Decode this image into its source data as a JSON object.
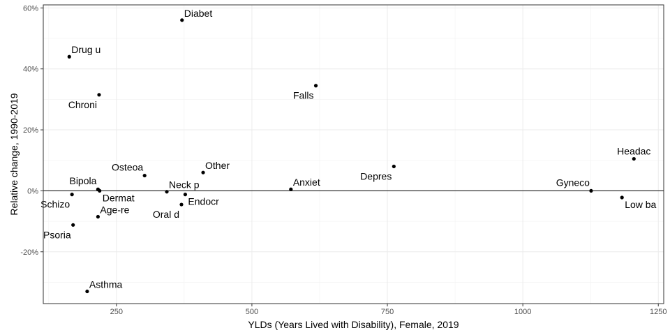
{
  "chart_data": {
    "type": "scatter",
    "title": "",
    "xlabel": "YLDs (Years Lived with Disability), Female, 2019",
    "ylabel": "Relative change, 1990-2019",
    "xlim": [
      115,
      1260
    ],
    "ylim": [
      -0.37,
      0.61
    ],
    "x_ticks": [
      250,
      500,
      750,
      1000,
      1250
    ],
    "y_ticks": [
      -0.2,
      0,
      0.2,
      0.4,
      0.6
    ],
    "x_tick_labels": [
      "250",
      "500",
      "750",
      "1000",
      "1250"
    ],
    "y_tick_labels": [
      "-20%",
      "0%",
      "20%",
      "40%",
      "60%"
    ],
    "reference_line_y": 0,
    "grid": true,
    "points": [
      {
        "label": "Diabet",
        "x": 371,
        "y": 0.56,
        "anchor": "right-above"
      },
      {
        "label": "Drug u",
        "x": 163,
        "y": 0.44,
        "anchor": "right-above"
      },
      {
        "label": "Chroni",
        "x": 218,
        "y": 0.315,
        "anchor": "left-below"
      },
      {
        "label": "Falls",
        "x": 618,
        "y": 0.345,
        "anchor": "left-below"
      },
      {
        "label": "Headac",
        "x": 1205,
        "y": 0.105,
        "anchor": "center-above"
      },
      {
        "label": "Depres",
        "x": 762,
        "y": 0.08,
        "anchor": "left-below"
      },
      {
        "label": "Other",
        "x": 410,
        "y": 0.06,
        "anchor": "right-above"
      },
      {
        "label": "Osteoa",
        "x": 302,
        "y": 0.05,
        "anchor": "left-above"
      },
      {
        "label": "Anxiet",
        "x": 572,
        "y": 0.005,
        "anchor": "right-above"
      },
      {
        "label": "Bipola",
        "x": 216,
        "y": 0.005,
        "anchor": "left-above"
      },
      {
        "label": "Dermat",
        "x": 219,
        "y": 0.0,
        "anchor": "right-below"
      },
      {
        "label": "Gyneco",
        "x": 1126,
        "y": 0.0,
        "anchor": "left-above"
      },
      {
        "label": "Neck p",
        "x": 343,
        "y": -0.003,
        "anchor": "right-above"
      },
      {
        "label": "Schizo",
        "x": 168,
        "y": -0.012,
        "anchor": "left-below"
      },
      {
        "label": "Endocr",
        "x": 377,
        "y": -0.012,
        "anchor": "right-below"
      },
      {
        "label": "Low ba",
        "x": 1183,
        "y": -0.022,
        "anchor": "right-below"
      },
      {
        "label": "Oral d",
        "x": 370,
        "y": -0.045,
        "anchor": "left-below"
      },
      {
        "label": "Age-re",
        "x": 216,
        "y": -0.085,
        "anchor": "right-above"
      },
      {
        "label": "Psoria",
        "x": 170,
        "y": -0.112,
        "anchor": "left-below"
      },
      {
        "label": "Asthma",
        "x": 196,
        "y": -0.33,
        "anchor": "right-above"
      }
    ]
  }
}
